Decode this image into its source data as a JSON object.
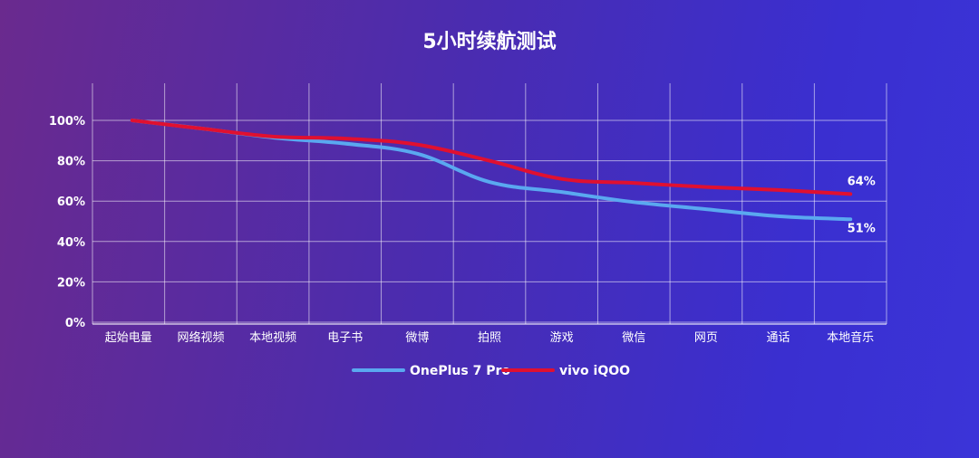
{
  "chart_data": {
    "type": "line",
    "title": "5小时续航测试",
    "categories": [
      "起始电量",
      "网络视频",
      "本地视频",
      "电子书",
      "微博",
      "拍照",
      "游戏",
      "微信",
      "网页",
      "通话",
      "本地音乐"
    ],
    "ylim": [
      0,
      100
    ],
    "yticks": [
      0,
      20,
      40,
      60,
      80,
      100
    ],
    "ytick_labels": [
      "0%",
      "20%",
      "40%",
      "60%",
      "80%",
      "100%"
    ],
    "grid": true,
    "legend_position": "bottom-center",
    "series": [
      {
        "name": "OnePlus 7 Pro",
        "color": "#5aa8f0",
        "values": [
          100,
          96,
          91.5,
          88.5,
          83.5,
          69.5,
          64.5,
          59.5,
          56,
          52.5,
          51
        ],
        "end_label": "51%"
      },
      {
        "name": "vivo iQOO",
        "color": "#e01030",
        "values": [
          100,
          96,
          92,
          91,
          88,
          80,
          71,
          69,
          67,
          65.5,
          63.5
        ],
        "end_label": "64%"
      }
    ]
  }
}
